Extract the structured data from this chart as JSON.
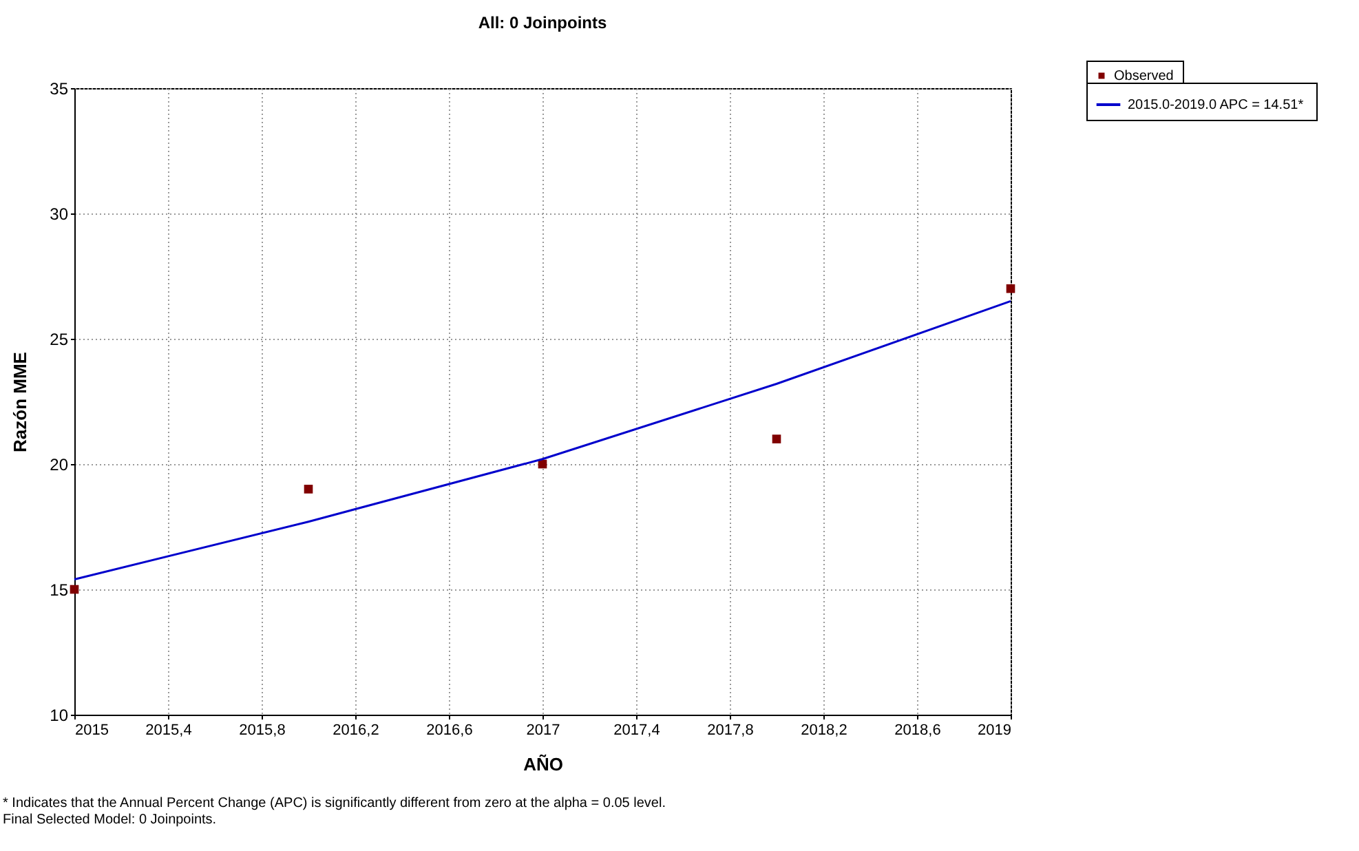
{
  "chart_data": {
    "type": "scatter",
    "title": "All: 0 Joinpoints",
    "xlabel": "AÑO",
    "ylabel": "Razón MME",
    "x": [
      2015,
      2016,
      2017,
      2018,
      2019
    ],
    "series": [
      {
        "name": "Observed",
        "color": "#800000",
        "marker": "square",
        "values": [
          15,
          19,
          20,
          21,
          27
        ]
      },
      {
        "name": "2015.0-2019.0 APC  = 14.51*",
        "type": "line",
        "color": "#0000cc",
        "line_style": "solid",
        "values": [
          15.4,
          17.7,
          20.2,
          23.2,
          26.5
        ]
      }
    ],
    "xlim": [
      2015,
      2019
    ],
    "xticks": [
      2015,
      {
        "value": 2015.4,
        "label": "2015,4"
      },
      {
        "value": 2015.8,
        "label": "2015,8"
      },
      {
        "value": 2016.2,
        "label": "2016,2"
      },
      {
        "value": 2016.6,
        "label": "2016,6"
      },
      2017,
      {
        "value": 2017.4,
        "label": "2017,4"
      },
      {
        "value": 2017.8,
        "label": "2017,8"
      },
      {
        "value": 2018.2,
        "label": "2018,2"
      },
      {
        "value": 2018.6,
        "label": "2018,6"
      },
      2019
    ],
    "ylim": [
      10,
      35
    ],
    "yticks": [
      10,
      15,
      20,
      25,
      30,
      35
    ],
    "grid": true,
    "legend": "top right",
    "annotations": [
      "* Indicates that the Annual Percent Change (APC) is significantly different from zero at the alpha = 0.05 level.",
      "Final Selected Model: 0 Joinpoints."
    ]
  }
}
